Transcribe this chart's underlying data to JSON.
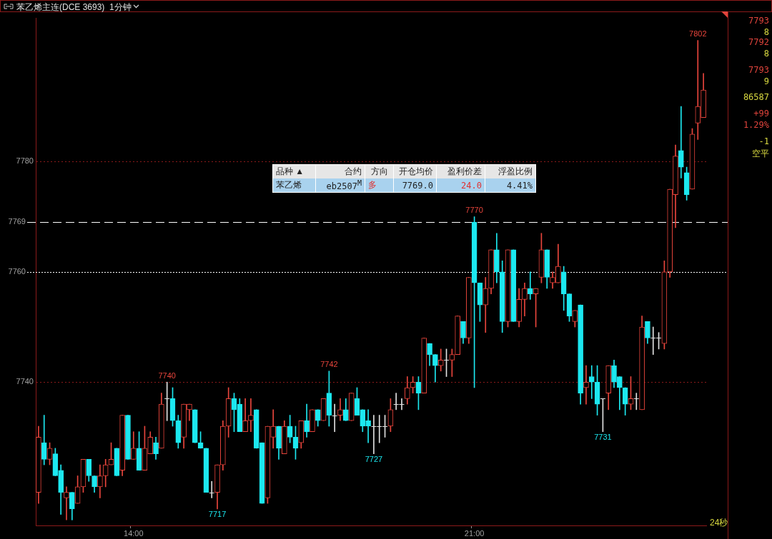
{
  "chart_data": {
    "type": "candlestick",
    "title": "苯乙烯主连(DCE 3693)",
    "subtitle": "1分钟",
    "categories": [
      null,
      null,
      null,
      null,
      null,
      null,
      null,
      null,
      null,
      null,
      null,
      null,
      null,
      null,
      null,
      null,
      null,
      "14:00",
      null,
      null,
      null,
      null,
      null,
      null,
      null,
      null,
      null,
      null,
      null,
      null,
      null,
      null,
      null,
      null,
      null,
      null,
      null,
      null,
      null,
      null,
      null,
      null,
      null,
      null,
      null,
      null,
      null,
      null,
      null,
      null,
      null,
      null,
      null,
      null,
      null,
      null,
      null,
      null,
      null,
      null,
      null,
      null,
      null,
      null,
      null,
      null,
      null,
      null,
      null,
      null,
      null,
      null,
      null,
      null,
      null,
      null,
      null,
      null,
      "21:00",
      null,
      null,
      null,
      null,
      null,
      null,
      null,
      null,
      null,
      null,
      null,
      null,
      null,
      null,
      null,
      null,
      null,
      null,
      null,
      null,
      null,
      null,
      null,
      null,
      null,
      null,
      null,
      null,
      null,
      null,
      null,
      null,
      null,
      null,
      null,
      null,
      null,
      null,
      null,
      null,
      null
    ],
    "ohlc": [
      [
        7720,
        7732,
        7718,
        7730
      ],
      [
        7729,
        7734,
        7725,
        7726
      ],
      [
        7726,
        7729,
        7725,
        7728
      ],
      [
        7727,
        7728,
        7723,
        7723
      ],
      [
        7724,
        7725,
        7716,
        7720
      ],
      [
        7719,
        7721,
        7715,
        7720
      ],
      [
        7720,
        7720,
        7715,
        7717
      ],
      [
        7718,
        7723,
        7718,
        7721
      ],
      [
        7721,
        7726,
        7720,
        7726
      ],
      [
        7726,
        7726,
        7722,
        7723
      ],
      [
        7723,
        7723,
        7720,
        7721
      ],
      [
        7721,
        7725,
        7719,
        7723
      ],
      [
        7723,
        7726,
        7721,
        7725
      ],
      [
        7725,
        7729,
        7725,
        7726
      ],
      [
        7728,
        7728,
        7723,
        7723
      ],
      [
        7724,
        7734,
        7723,
        7734
      ],
      [
        7734,
        7734,
        7726,
        7726
      ],
      [
        7726,
        7731,
        7726,
        7728
      ],
      [
        7728,
        7731,
        7724,
        7724
      ],
      [
        7724,
        7732,
        7724,
        7728
      ],
      [
        7727,
        7731,
        7727,
        7730
      ],
      [
        7729,
        7730,
        7726,
        7727
      ],
      [
        7728,
        7738,
        7728,
        7736
      ],
      [
        7737,
        7740,
        7733,
        7737
      ],
      [
        7737,
        7739,
        7732,
        7733
      ],
      [
        7733,
        7734,
        7728,
        7729
      ],
      [
        7730,
        7736,
        7728,
        7736
      ],
      [
        7735,
        7736,
        7733,
        7736
      ],
      [
        7735,
        7735,
        7729,
        7729
      ],
      [
        7729,
        7731,
        7728,
        7728
      ],
      [
        7728,
        7728,
        7720,
        7720
      ],
      [
        7720,
        7722,
        7719,
        7720
      ],
      [
        7720,
        7725,
        7717,
        7725
      ],
      [
        7725,
        7733,
        7724,
        7732
      ],
      [
        7732,
        7739,
        7730,
        7737
      ],
      [
        7737,
        7738,
        7731,
        7735
      ],
      [
        7736,
        7737,
        7731,
        7731
      ],
      [
        7731,
        7737,
        7731,
        7733
      ],
      [
        7733,
        7737,
        7731,
        7734
      ],
      [
        7735,
        7735,
        7728,
        7728
      ],
      [
        7729,
        7729,
        7718,
        7718
      ],
      [
        7719,
        7732,
        7718,
        7732
      ],
      [
        7730,
        7735,
        7728,
        7732
      ],
      [
        7732,
        7732,
        7726,
        7728
      ],
      [
        7727,
        7733,
        7727,
        7732
      ],
      [
        7732,
        7734,
        7729,
        7730
      ],
      [
        7730,
        7732,
        7726,
        7728
      ],
      [
        7729,
        7733,
        7728,
        7733
      ],
      [
        7733,
        7736,
        7730,
        7731
      ],
      [
        7731,
        7735,
        7731,
        7735
      ],
      [
        7735,
        7735,
        7732,
        7733
      ],
      [
        7733,
        7737,
        7733,
        7737
      ],
      [
        7738,
        7742,
        7732,
        7734
      ],
      [
        7734,
        7736,
        7731,
        7734
      ],
      [
        7734,
        7737,
        7733,
        7735
      ],
      [
        7735,
        7737,
        7733,
        7733
      ],
      [
        7733,
        7738,
        7733,
        7738
      ],
      [
        7737,
        7739,
        7734,
        7734
      ],
      [
        7735,
        7735,
        7731,
        7732
      ],
      [
        7733,
        7735,
        7729,
        7732
      ],
      [
        7732,
        7734,
        7727,
        7732
      ],
      [
        7732,
        7734,
        7729,
        7732
      ],
      [
        7732,
        7734,
        7730,
        7732
      ],
      [
        7732,
        7737,
        7731,
        7735
      ],
      [
        7736,
        7738,
        7735,
        7736
      ],
      [
        7736,
        7737,
        7735,
        7736
      ],
      [
        7737,
        7741,
        7736,
        7739
      ],
      [
        7739,
        7741,
        7738,
        7740
      ],
      [
        7740,
        7741,
        7735,
        7738
      ],
      [
        7738,
        7748,
        7738,
        7748
      ],
      [
        7747,
        7747,
        7743,
        7745
      ],
      [
        7745,
        7745,
        7740,
        7743
      ],
      [
        7743,
        7746,
        7742,
        7744
      ],
      [
        7744,
        7746,
        7741,
        7744
      ],
      [
        7744,
        7746,
        7741,
        7745
      ],
      [
        7745,
        7752,
        7745,
        7752
      ],
      [
        7751,
        7751,
        7747,
        7748
      ],
      [
        7748,
        7759,
        7747,
        7759
      ],
      [
        7769,
        7770,
        7739,
        7758
      ],
      [
        7758,
        7758,
        7751,
        7754
      ],
      [
        7754,
        7759,
        7749,
        7757
      ],
      [
        7757,
        7764,
        7756,
        7764
      ],
      [
        7764,
        7767,
        7758,
        7760
      ],
      [
        7760,
        7762,
        7749,
        7751
      ],
      [
        7751,
        7764,
        7750,
        7764
      ],
      [
        7764,
        7764,
        7751,
        7751
      ],
      [
        7751,
        7757,
        7750,
        7755
      ],
      [
        7755,
        7758,
        7752,
        7757
      ],
      [
        7757,
        7760,
        7755,
        7756
      ],
      [
        7756,
        7757,
        7750,
        7757
      ],
      [
        7759,
        7767,
        7758,
        7764
      ],
      [
        7764,
        7764,
        7757,
        7759
      ],
      [
        7758,
        7760,
        7757,
        7759
      ],
      [
        7758,
        7765,
        7758,
        7761
      ],
      [
        7760,
        7761,
        7753,
        7756
      ],
      [
        7756,
        7756,
        7751,
        7752
      ],
      [
        7751,
        7753,
        7750,
        7753
      ],
      [
        7754,
        7754,
        7736,
        7738
      ],
      [
        7739,
        7743,
        7736,
        7740
      ],
      [
        7741,
        7743,
        7737,
        7740
      ],
      [
        7740,
        7743,
        7734,
        7736
      ],
      [
        7737,
        7737,
        7731,
        7737
      ],
      [
        7738,
        7743,
        7735,
        7743
      ],
      [
        7743,
        7744,
        7739,
        7740
      ],
      [
        7741,
        7741,
        7735,
        7739
      ],
      [
        7739,
        7739,
        7734,
        7736
      ],
      [
        7736,
        7741,
        7735,
        7737
      ],
      [
        7737,
        7738,
        7735,
        7737
      ],
      [
        7735,
        7752,
        7735,
        7750
      ],
      [
        7751,
        7751,
        7747,
        7748
      ],
      [
        7748,
        7750,
        7745,
        7748
      ],
      [
        7748,
        7749,
        7746,
        7748
      ],
      [
        7747,
        7762,
        7746,
        7760
      ],
      [
        7760,
        7775,
        7759,
        7775
      ],
      [
        7774,
        7783,
        7768,
        7781
      ],
      [
        7782,
        7790,
        7777,
        7779
      ],
      [
        7778,
        7779,
        7773,
        7774
      ],
      [
        7775,
        7786,
        7775,
        7785
      ],
      [
        7787,
        7802,
        7784,
        7790
      ],
      [
        7788,
        7796,
        7788,
        7793
      ]
    ],
    "ylim": [
      7714,
      7806
    ],
    "yticks": [
      7740,
      7780
    ],
    "grid": "y",
    "ref_lines": [
      {
        "axis": "y",
        "value": 7769,
        "label": "7769",
        "color": "#ffffff",
        "line_style": "dashed"
      },
      {
        "axis": "y",
        "value": 7760,
        "label": "7760",
        "color": "#ffffff",
        "line_style": "dotted"
      }
    ],
    "annotations": [
      {
        "text": "7740",
        "y": 7740
      },
      {
        "text": "7742",
        "y": 7742
      },
      {
        "text": "7770",
        "y": 7770
      },
      {
        "text": "7802",
        "y": 7802
      },
      {
        "text": "7717",
        "y": 7717
      },
      {
        "text": "7727",
        "y": 7727
      },
      {
        "text": "7731",
        "y": 7731
      },
      "品种 ▲",
      "合约",
      "方向",
      "开仓均价",
      "盈利价差",
      "浮盈比例",
      "苯乙烯",
      "eb2507$^{M}$",
      "多",
      "7769.0",
      "24.0",
      "4.41%",
      "7793",
      "8",
      "7792",
      "8",
      "7793",
      "9",
      "86587",
      "+99",
      "1.29%",
      "-1",
      "空平",
      "24秒"
    ]
  }
}
